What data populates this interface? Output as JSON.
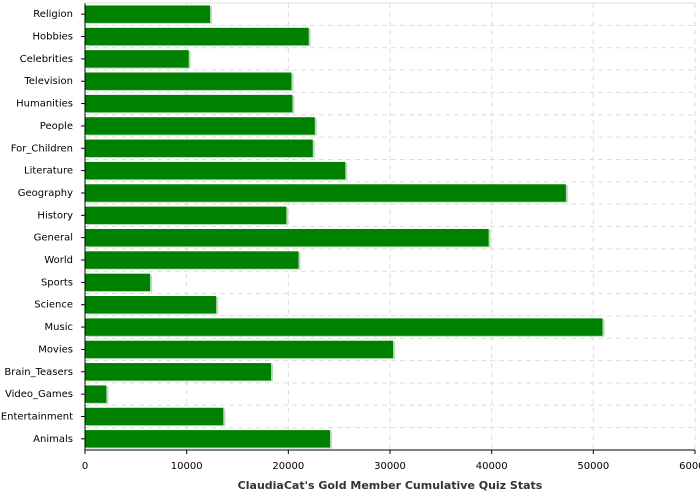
{
  "chart_data": {
    "type": "bar",
    "orientation": "horizontal",
    "x_label": "ClaudiaCat's Gold Member Cumulative Quiz Stats",
    "categories": [
      "Religion",
      "Hobbies",
      "Celebrities",
      "Television",
      "Humanities",
      "People",
      "For_Children",
      "Literature",
      "Geography",
      "History",
      "General",
      "World",
      "Sports",
      "Science",
      "Music",
      "Movies",
      "Brain_Teasers",
      "Video_Games",
      "Entertainment",
      "Animals"
    ],
    "values": [
      12300,
      22000,
      10200,
      20300,
      20400,
      22600,
      22400,
      25600,
      47300,
      19800,
      39700,
      21000,
      6400,
      12900,
      50900,
      30300,
      18300,
      2100,
      13600,
      24100
    ],
    "color": "#008000",
    "xlim": [
      0,
      60000
    ],
    "xticks": [
      0,
      10000,
      20000,
      30000,
      40000,
      50000,
      60000
    ],
    "grid": true
  }
}
